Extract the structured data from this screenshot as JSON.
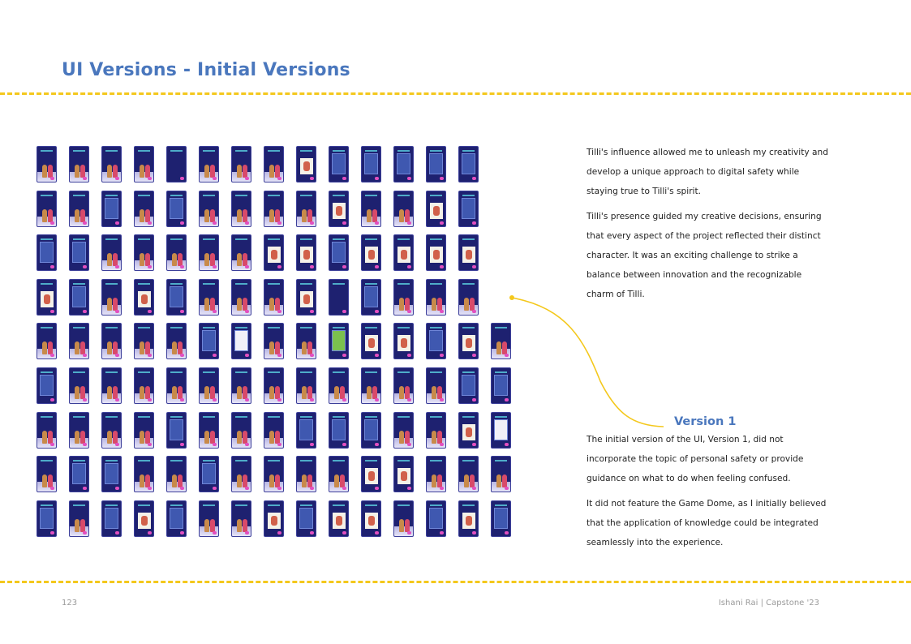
{
  "page": {
    "title": "UI Versions - Initial Versions",
    "page_number": "123",
    "credit": "Ishani Rai | Capstone '23"
  },
  "intro": {
    "paragraphs": [
      "Tilli's influence allowed me to unleash my creativity and develop a unique approach to digital safety while staying true to Tilli's spirit.",
      "Tilli's presence guided my creative decisions, ensuring that every aspect of the project reflected their distinct character. It was an exciting challenge to strike a balance between innovation and the recognizable charm of Tilli."
    ]
  },
  "version": {
    "label": "Version 1",
    "paragraphs": [
      "The initial version of the UI, Version 1, did not incorporate the topic of personal safety or provide guidance on what to do when feeling confused.",
      "It did not feature the Game Dome, as I initially believed that the application of knowledge could be integrated seamlessly into the experience."
    ]
  },
  "colors": {
    "accent_blue": "#4a77bd",
    "dash_yellow": "#f4c81d",
    "card_navy": "#1e2170"
  },
  "screens_grid": {
    "rows": [
      [
        "fig",
        "fig",
        "fig",
        "fig",
        "head",
        "fig",
        "fig",
        "fig",
        "photo",
        "panel",
        "panel",
        "panel",
        "panel",
        "panel"
      ],
      [
        "fig",
        "fig",
        "panel",
        "fig",
        "panel",
        "fig",
        "fig",
        "fig",
        "fig",
        "photo",
        "fig",
        "fig",
        "photo",
        "panel"
      ],
      [
        "panel",
        "panel",
        "fig",
        "fig",
        "fig",
        "fig",
        "fig",
        "photo",
        "photo",
        "panel",
        "photo",
        "photo",
        "photo",
        "photo"
      ],
      [
        "photo",
        "panel",
        "fig",
        "photo",
        "panel",
        "fig",
        "fig",
        "fig",
        "photo",
        "head",
        "panel",
        "fig",
        "fig",
        "fig"
      ],
      [
        "fig",
        "fig",
        "fig",
        "fig",
        "fig",
        "panel",
        "light",
        "fig",
        "fig",
        "green",
        "photo",
        "photo",
        "panel",
        "photo",
        "fig"
      ],
      [
        "panel",
        "fig",
        "fig",
        "fig",
        "fig",
        "fig",
        "fig",
        "fig",
        "fig",
        "fig",
        "fig",
        "fig",
        "fig",
        "panel",
        "panel"
      ],
      [
        "fig",
        "fig",
        "fig",
        "fig",
        "panel",
        "fig",
        "fig",
        "fig",
        "panel",
        "panel",
        "panel",
        "fig",
        "fig",
        "photo",
        "light"
      ],
      [
        "fig",
        "panel",
        "panel",
        "fig",
        "fig",
        "panel",
        "fig",
        "fig",
        "fig",
        "fig",
        "photo",
        "photo",
        "fig",
        "fig",
        "fig"
      ],
      [
        "panel",
        "fig",
        "panel",
        "photo",
        "panel",
        "fig",
        "fig",
        "photo",
        "panel",
        "photo",
        "photo",
        "fig",
        "panel",
        "photo",
        "panel"
      ]
    ]
  }
}
